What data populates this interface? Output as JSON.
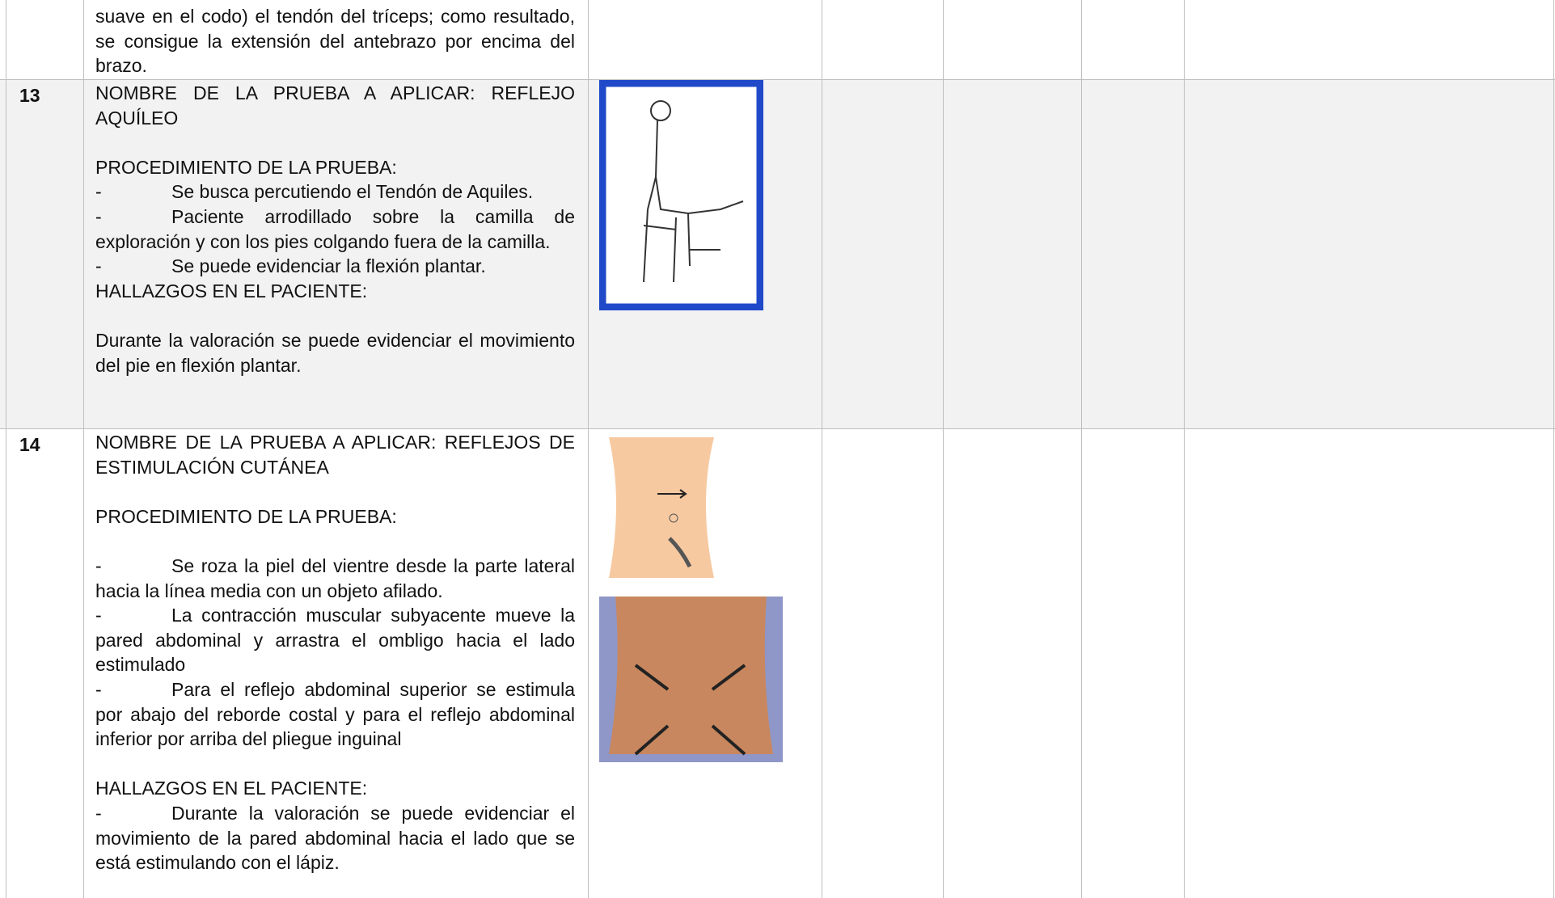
{
  "rows": [
    {
      "text": "suave en el codo) el tendón del tríceps; como resultado, se consigue la extensión del antebrazo por encima del brazo."
    },
    {
      "number": "13",
      "name": "NOMBRE DE LA PRUEBA A APLICAR: REFLEJO AQUÍLEO",
      "procedure_title": "PROCEDIMIENTO DE LA PRUEBA:",
      "procedure": [
        {
          "marker": "-",
          "text": "Se busca percutiendo el Tendón de Aquiles."
        },
        {
          "marker": "-",
          "text": "Paciente arrodillado sobre la camilla de exploración y con los pies colgando fuera de la camilla."
        },
        {
          "marker": "-",
          "text": "Se puede evidenciar la flexión plantar."
        }
      ],
      "findings_title": "HALLAZGOS EN EL PACIENTE:",
      "findings": "Durante la valoración se puede evidenciar el movimiento del pie en flexión plantar."
    },
    {
      "number": "14",
      "name": "NOMBRE DE LA PRUEBA A APLICAR: REFLEJOS DE ESTIMULACIÓN CUTÁNEA",
      "procedure_title": "PROCEDIMIENTO DE LA PRUEBA:",
      "procedure": [
        {
          "marker": "-",
          "text": "Se roza la piel del vientre desde la parte lateral hacia la línea media con un objeto afilado."
        },
        {
          "marker": "-",
          "text": "La contracción muscular subyacente mueve la pared abdominal y arrastra el ombligo hacia el lado estimulado"
        },
        {
          "marker": "-",
          "text": "Para el reflejo abdominal superior se estimula por abajo del reborde costal y para el reflejo abdominal inferior por arriba del pliegue inguinal"
        }
      ],
      "findings_title": "HALLAZGOS EN EL PACIENTE:",
      "findings": [
        {
          "marker": "-",
          "text": "Durante la valoración se puede evidenciar el movimiento de la pared abdominal hacia el lado que se está estimulando con el lápiz."
        }
      ]
    }
  ]
}
